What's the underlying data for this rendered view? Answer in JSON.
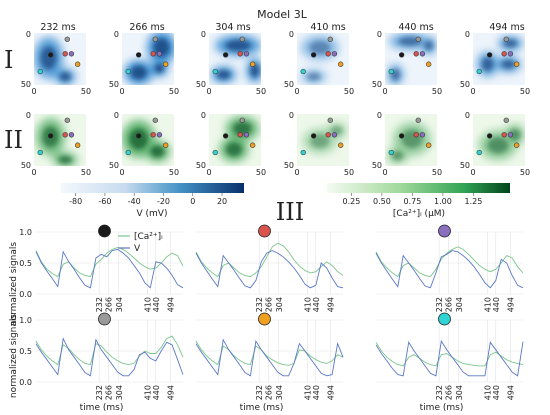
{
  "figure": {
    "title": "Model 3L",
    "section_label": "III",
    "row_labels": [
      "I",
      "II"
    ],
    "time_labels": [
      "232 ms",
      "266 ms",
      "304 ms",
      "410 ms",
      "440 ms",
      "494 ms"
    ],
    "map_ticks": [
      "0",
      "50",
      "0",
      "50"
    ]
  },
  "colorbars": {
    "voltage": {
      "label": "V (mV)",
      "range": [
        -90,
        35
      ],
      "ticks": [
        "-80",
        "-60",
        "-40",
        "-20",
        "0",
        "20"
      ],
      "tick_values": [
        -80,
        -60,
        -40,
        -20,
        0,
        20
      ],
      "colors": [
        "#f4f8fd",
        "#08306b"
      ]
    },
    "calcium": {
      "label": "[Ca²⁺]ᵢ (μM)",
      "range": [
        0.05,
        1.55
      ],
      "ticks": [
        "0.25",
        "0.50",
        "0.75",
        "1.00",
        "1.25"
      ],
      "tick_values": [
        0.25,
        0.5,
        0.75,
        1.0,
        1.25
      ],
      "colors": [
        "#f4fbf1",
        "#00441b"
      ]
    }
  },
  "probe_colors": {
    "black": "#1a1a1a",
    "red": "#d9534f",
    "purple": "#8a6fbf",
    "gray": "#999999",
    "orange": "#f0a020",
    "cyan": "#2fd3d3"
  },
  "chart_data": [
    {
      "type": "line",
      "probe": "black",
      "xlabel": "",
      "ylabel": "normalized signals",
      "yticks": [
        "0.0",
        "0.5",
        "1.0"
      ],
      "ylim": [
        0,
        1
      ],
      "x_marker_labels": [
        "232",
        "266",
        "304",
        "410",
        "440",
        "494"
      ],
      "x_markers": [
        232,
        266,
        304,
        410,
        440,
        494
      ],
      "legend": [
        "[Ca²⁺]ᵢ",
        "V"
      ],
      "series": [
        {
          "name": "[Ca²⁺]ᵢ",
          "x": [
            0,
            20,
            40,
            60,
            80,
            100,
            120,
            140,
            160,
            180,
            200,
            220,
            240,
            260,
            280,
            300,
            320,
            340,
            360,
            380,
            400,
            420,
            440,
            460,
            480,
            500,
            520,
            540
          ],
          "values": [
            0.7,
            0.52,
            0.4,
            0.33,
            0.28,
            0.48,
            0.52,
            0.42,
            0.34,
            0.3,
            0.28,
            0.48,
            0.56,
            0.66,
            0.72,
            0.75,
            0.72,
            0.66,
            0.58,
            0.5,
            0.44,
            0.4,
            0.42,
            0.5,
            0.6,
            0.66,
            0.62,
            0.45
          ]
        },
        {
          "name": "V",
          "x": [
            0,
            20,
            40,
            60,
            80,
            100,
            120,
            140,
            160,
            180,
            200,
            220,
            240,
            260,
            280,
            300,
            320,
            340,
            360,
            380,
            400,
            420,
            440,
            460,
            480,
            500,
            520,
            540
          ],
          "values": [
            0.68,
            0.5,
            0.37,
            0.25,
            0.12,
            0.68,
            0.52,
            0.4,
            0.26,
            0.14,
            0.1,
            0.58,
            0.64,
            0.6,
            0.7,
            0.72,
            0.66,
            0.58,
            0.46,
            0.34,
            0.18,
            0.1,
            0.52,
            0.5,
            0.42,
            0.3,
            0.15,
            0.1
          ]
        }
      ]
    },
    {
      "type": "line",
      "probe": "red",
      "xlabel": "",
      "ylabel": "",
      "yticks": [],
      "ylim": [
        0,
        1
      ],
      "x_marker_labels": [
        "232",
        "266",
        "304",
        "410",
        "440",
        "494"
      ],
      "x_markers": [
        232,
        266,
        304,
        410,
        440,
        494
      ],
      "legend": [],
      "series": [
        {
          "name": "[Ca²⁺]ᵢ",
          "x": [
            0,
            20,
            40,
            60,
            80,
            100,
            120,
            140,
            160,
            180,
            200,
            220,
            240,
            260,
            280,
            300,
            320,
            340,
            360,
            380,
            400,
            420,
            440,
            460,
            480,
            500,
            520,
            540
          ],
          "values": [
            0.68,
            0.52,
            0.42,
            0.34,
            0.28,
            0.46,
            0.5,
            0.42,
            0.34,
            0.3,
            0.28,
            0.34,
            0.44,
            0.6,
            0.76,
            0.82,
            0.78,
            0.68,
            0.55,
            0.45,
            0.38,
            0.34,
            0.36,
            0.44,
            0.52,
            0.46,
            0.36,
            0.3
          ]
        },
        {
          "name": "V",
          "x": [
            0,
            20,
            40,
            60,
            80,
            100,
            120,
            140,
            160,
            180,
            200,
            220,
            240,
            260,
            280,
            300,
            320,
            340,
            360,
            380,
            400,
            420,
            440,
            460,
            480,
            500,
            520,
            540
          ],
          "values": [
            0.66,
            0.5,
            0.37,
            0.24,
            0.12,
            0.62,
            0.5,
            0.38,
            0.25,
            0.13,
            0.1,
            0.22,
            0.52,
            0.66,
            0.7,
            0.66,
            0.6,
            0.52,
            0.42,
            0.3,
            0.16,
            0.1,
            0.14,
            0.5,
            0.42,
            0.26,
            0.12,
            0.1
          ]
        }
      ]
    },
    {
      "type": "line",
      "probe": "purple",
      "xlabel": "",
      "ylabel": "",
      "yticks": [],
      "ylim": [
        0,
        1
      ],
      "x_marker_labels": [
        "232",
        "266",
        "304",
        "410",
        "440",
        "494"
      ],
      "x_markers": [
        232,
        266,
        304,
        410,
        440,
        494
      ],
      "legend": [],
      "series": [
        {
          "name": "[Ca²⁺]ᵢ",
          "x": [
            0,
            20,
            40,
            60,
            80,
            100,
            120,
            140,
            160,
            180,
            200,
            220,
            240,
            260,
            280,
            300,
            320,
            340,
            360,
            380,
            400,
            420,
            440,
            460,
            480,
            500,
            520,
            540
          ],
          "values": [
            0.68,
            0.52,
            0.42,
            0.34,
            0.28,
            0.46,
            0.5,
            0.42,
            0.34,
            0.3,
            0.28,
            0.4,
            0.56,
            0.66,
            0.72,
            0.76,
            0.72,
            0.64,
            0.55,
            0.46,
            0.4,
            0.36,
            0.4,
            0.5,
            0.62,
            0.58,
            0.44,
            0.34
          ]
        },
        {
          "name": "V",
          "x": [
            0,
            20,
            40,
            60,
            80,
            100,
            120,
            140,
            160,
            180,
            200,
            220,
            240,
            260,
            280,
            300,
            320,
            340,
            360,
            380,
            400,
            420,
            440,
            460,
            480,
            500,
            520,
            540
          ],
          "values": [
            0.66,
            0.5,
            0.37,
            0.24,
            0.12,
            0.62,
            0.5,
            0.38,
            0.25,
            0.13,
            0.1,
            0.34,
            0.6,
            0.64,
            0.7,
            0.68,
            0.62,
            0.54,
            0.44,
            0.32,
            0.18,
            0.1,
            0.22,
            0.56,
            0.5,
            0.3,
            0.14,
            0.1
          ]
        }
      ]
    },
    {
      "type": "line",
      "probe": "gray",
      "xlabel": "time (ms)",
      "ylabel": "normalized signals",
      "yticks": [
        "0.0",
        "0.5",
        "1.0"
      ],
      "ylim": [
        0,
        1
      ],
      "x_marker_labels": [
        "232",
        "266",
        "304",
        "410",
        "440",
        "494"
      ],
      "x_markers": [
        232,
        266,
        304,
        410,
        440,
        494
      ],
      "legend": [],
      "series": [
        {
          "name": "[Ca²⁺]ᵢ",
          "x": [
            0,
            20,
            40,
            60,
            80,
            100,
            120,
            140,
            160,
            180,
            200,
            220,
            240,
            260,
            280,
            300,
            320,
            340,
            360,
            380,
            400,
            420,
            440,
            460,
            480,
            500,
            520,
            540
          ],
          "values": [
            0.66,
            0.52,
            0.42,
            0.34,
            0.28,
            0.6,
            0.54,
            0.44,
            0.36,
            0.3,
            0.28,
            0.62,
            0.58,
            0.48,
            0.4,
            0.34,
            0.3,
            0.28,
            0.3,
            0.42,
            0.5,
            0.46,
            0.46,
            0.56,
            0.7,
            0.74,
            0.6,
            0.4
          ]
        },
        {
          "name": "V",
          "x": [
            0,
            20,
            40,
            60,
            80,
            100,
            120,
            140,
            160,
            180,
            200,
            220,
            240,
            260,
            280,
            300,
            320,
            340,
            360,
            380,
            400,
            420,
            440,
            460,
            480,
            500,
            520,
            540
          ],
          "values": [
            0.62,
            0.48,
            0.36,
            0.24,
            0.12,
            0.7,
            0.52,
            0.4,
            0.28,
            0.15,
            0.1,
            0.68,
            0.52,
            0.4,
            0.28,
            0.16,
            0.1,
            0.1,
            0.2,
            0.44,
            0.48,
            0.38,
            0.34,
            0.5,
            0.64,
            0.6,
            0.36,
            0.12
          ]
        }
      ]
    },
    {
      "type": "line",
      "probe": "orange",
      "xlabel": "time (ms)",
      "ylabel": "",
      "yticks": [],
      "ylim": [
        0,
        1
      ],
      "x_marker_labels": [
        "232",
        "266",
        "304",
        "410",
        "440",
        "494"
      ],
      "x_markers": [
        232,
        266,
        304,
        410,
        440,
        494
      ],
      "legend": [],
      "series": [
        {
          "name": "[Ca²⁺]ᵢ",
          "x": [
            0,
            20,
            40,
            60,
            80,
            100,
            120,
            140,
            160,
            180,
            200,
            220,
            240,
            260,
            280,
            300,
            320,
            340,
            360,
            380,
            400,
            420,
            440,
            460,
            480,
            500,
            520,
            540
          ],
          "values": [
            0.66,
            0.52,
            0.42,
            0.34,
            0.28,
            0.58,
            0.52,
            0.42,
            0.35,
            0.3,
            0.28,
            0.58,
            0.52,
            0.42,
            0.36,
            0.31,
            0.28,
            0.27,
            0.3,
            0.52,
            0.5,
            0.42,
            0.36,
            0.32,
            0.3,
            0.34,
            0.44,
            0.4
          ]
        },
        {
          "name": "V",
          "x": [
            0,
            20,
            40,
            60,
            80,
            100,
            120,
            140,
            160,
            180,
            200,
            220,
            240,
            260,
            280,
            300,
            320,
            340,
            360,
            380,
            400,
            420,
            440,
            460,
            480,
            500,
            520,
            540
          ],
          "values": [
            0.62,
            0.48,
            0.36,
            0.24,
            0.12,
            0.68,
            0.52,
            0.4,
            0.28,
            0.15,
            0.1,
            0.66,
            0.52,
            0.4,
            0.28,
            0.16,
            0.1,
            0.1,
            0.3,
            0.62,
            0.5,
            0.38,
            0.26,
            0.14,
            0.1,
            0.12,
            0.62,
            0.4
          ]
        }
      ]
    },
    {
      "type": "line",
      "probe": "cyan",
      "xlabel": "time (ms)",
      "ylabel": "",
      "yticks": [],
      "ylim": [
        0,
        1
      ],
      "x_marker_labels": [
        "232",
        "266",
        "304",
        "410",
        "440",
        "494"
      ],
      "x_markers": [
        232,
        266,
        304,
        410,
        440,
        494
      ],
      "legend": [],
      "series": [
        {
          "name": "[Ca²⁺]ᵢ",
          "x": [
            0,
            20,
            40,
            60,
            80,
            100,
            120,
            140,
            160,
            180,
            200,
            220,
            240,
            260,
            280,
            300,
            320,
            340,
            360,
            380,
            400,
            420,
            440,
            460,
            480,
            500,
            520,
            540
          ],
          "values": [
            0.64,
            0.5,
            0.4,
            0.33,
            0.28,
            0.26,
            0.4,
            0.44,
            0.38,
            0.32,
            0.28,
            0.26,
            0.44,
            0.46,
            0.4,
            0.34,
            0.3,
            0.28,
            0.27,
            0.26,
            0.26,
            0.44,
            0.48,
            0.42,
            0.36,
            0.32,
            0.3,
            0.28
          ]
        },
        {
          "name": "V",
          "x": [
            0,
            20,
            40,
            60,
            80,
            100,
            120,
            140,
            160,
            180,
            200,
            220,
            240,
            260,
            280,
            300,
            320,
            340,
            360,
            380,
            400,
            420,
            440,
            460,
            480,
            500,
            520,
            540
          ],
          "values": [
            0.6,
            0.46,
            0.34,
            0.22,
            0.12,
            0.1,
            0.64,
            0.5,
            0.38,
            0.26,
            0.14,
            0.1,
            0.66,
            0.52,
            0.4,
            0.28,
            0.16,
            0.1,
            0.1,
            0.1,
            0.1,
            0.64,
            0.52,
            0.4,
            0.28,
            0.16,
            0.1,
            0.65
          ]
        }
      ]
    }
  ]
}
